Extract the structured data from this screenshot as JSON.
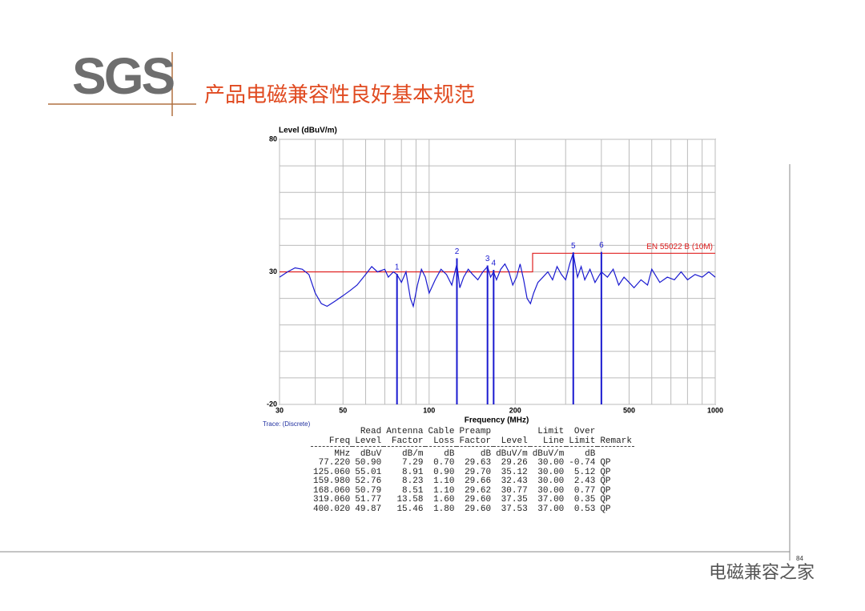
{
  "header": {
    "logo": "SGS",
    "title": "产品电磁兼容性良好基本规范"
  },
  "chart_data": {
    "type": "line",
    "y_label": "Level (dBuV/m)",
    "x_label": "Frequency (MHz)",
    "trace_label": "Trace: (Discrete)",
    "xlim": [
      30,
      1000
    ],
    "ylim": [
      -20,
      80
    ],
    "log_x": true,
    "grid": true,
    "xticks": [
      30,
      50,
      100,
      200,
      500,
      1000
    ],
    "yticks": [
      80,
      30,
      -20
    ],
    "xgrid": [
      40,
      60,
      70,
      80,
      90,
      300,
      400,
      600,
      700,
      800,
      900
    ],
    "ygrid": [
      -10,
      0,
      10,
      20,
      40,
      50,
      60,
      70
    ],
    "trace": {
      "color": "#1a1ad0",
      "x": [
        30,
        32,
        34,
        36,
        38,
        40,
        42,
        44,
        47,
        50,
        53,
        56,
        60,
        63,
        66,
        70,
        72,
        75,
        77.22,
        80,
        83,
        86,
        88,
        91,
        94,
        97,
        100,
        105,
        110,
        115,
        120,
        125,
        128,
        132,
        137,
        142,
        148,
        154,
        160,
        164,
        168,
        172,
        178,
        184,
        190,
        196,
        202,
        208,
        214,
        220,
        226,
        232,
        240,
        250,
        260,
        270,
        280,
        290,
        300,
        310,
        319,
        330,
        340,
        350,
        365,
        380,
        400,
        420,
        440,
        460,
        480,
        500,
        520,
        550,
        580,
        600,
        640,
        680,
        720,
        760,
        800,
        850,
        900,
        950,
        1000
      ],
      "values": [
        28,
        30,
        31.5,
        31,
        29,
        22,
        18,
        17,
        19,
        21,
        23,
        25,
        29,
        32,
        30,
        31,
        28,
        30,
        29,
        26,
        30,
        20,
        17,
        25,
        31,
        28,
        22,
        27,
        31,
        29,
        25,
        33,
        24,
        28,
        31,
        29,
        27,
        30,
        32,
        28,
        30,
        27,
        31,
        33,
        30,
        25,
        28,
        33,
        27,
        20,
        18,
        22,
        26,
        28,
        30,
        27,
        32,
        29,
        27,
        33,
        37,
        28,
        32,
        27,
        31,
        26,
        30,
        28,
        31,
        25,
        28,
        26,
        24,
        27,
        25,
        31,
        26,
        28,
        27,
        30,
        27,
        29,
        28,
        30,
        28
      ]
    },
    "limit": {
      "name": "EN 55022 B (10M)",
      "color": "#e02020",
      "x": [
        30,
        230,
        230,
        1000
      ],
      "values": [
        30,
        30,
        37,
        37
      ]
    },
    "markers": {
      "labels": [
        "1",
        "2",
        "3",
        "4",
        "5",
        "6"
      ],
      "x": [
        77.22,
        125.06,
        159.98,
        168.06,
        319.06,
        400.02
      ],
      "values": [
        29.26,
        35.12,
        32.43,
        30.77,
        37.35,
        37.53
      ]
    }
  },
  "table": {
    "columns": [
      {
        "lines": [
          "Freq"
        ],
        "unit": "MHz"
      },
      {
        "lines": [
          "Read",
          "Level"
        ],
        "unit": "dBuV"
      },
      {
        "lines": [
          "Antenna",
          "Factor"
        ],
        "unit": "dB/m"
      },
      {
        "lines": [
          "Cable",
          "Loss"
        ],
        "unit": "dB"
      },
      {
        "lines": [
          "Preamp",
          "Factor"
        ],
        "unit": "dB"
      },
      {
        "lines": [
          "Level"
        ],
        "unit": "dBuV/m"
      },
      {
        "lines": [
          "Limit",
          "Line"
        ],
        "unit": "dBuV/m"
      },
      {
        "lines": [
          "Over",
          "Limit"
        ],
        "unit": "dB"
      },
      {
        "lines": [
          "Remark"
        ]
      }
    ],
    "rows": [
      [
        "77.220",
        "50.90",
        "7.29",
        "0.70",
        "29.63",
        "29.26",
        "30.00",
        "-0.74",
        "QP"
      ],
      [
        "125.060",
        "55.01",
        "8.91",
        "0.90",
        "29.70",
        "35.12",
        "30.00",
        "5.12",
        "QP"
      ],
      [
        "159.980",
        "52.76",
        "8.23",
        "1.10",
        "29.66",
        "32.43",
        "30.00",
        "2.43",
        "QP"
      ],
      [
        "168.060",
        "50.79",
        "8.51",
        "1.10",
        "29.62",
        "30.77",
        "30.00",
        "0.77",
        "QP"
      ],
      [
        "319.060",
        "51.77",
        "13.58",
        "1.60",
        "29.60",
        "37.35",
        "37.00",
        "0.35",
        "QP"
      ],
      [
        "400.020",
        "49.87",
        "15.46",
        "1.80",
        "29.60",
        "37.53",
        "37.00",
        "0.53",
        "QP"
      ]
    ]
  },
  "footer": {
    "page": "84",
    "watermark": "电磁兼容之家"
  }
}
